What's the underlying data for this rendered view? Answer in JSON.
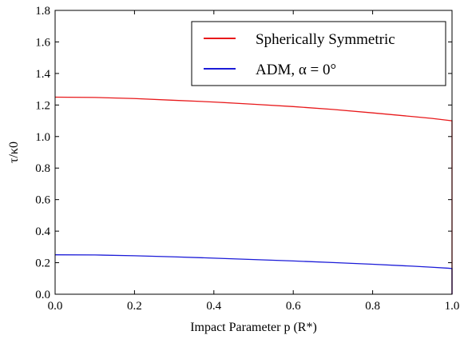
{
  "chart_data": {
    "type": "line",
    "title": "",
    "xlabel": "Impact Parameter p (R*)",
    "ylabel": "τ/κ0",
    "xlim": [
      0.0,
      1.0
    ],
    "ylim": [
      0.0,
      1.8
    ],
    "xticks": [
      "0.0",
      "0.2",
      "0.4",
      "0.6",
      "0.8",
      "1.0"
    ],
    "yticks": [
      "0.0",
      "0.2",
      "0.4",
      "0.6",
      "0.8",
      "1.0",
      "1.2",
      "1.4",
      "1.6",
      "1.8"
    ],
    "grid": false,
    "legend_position": "top-right",
    "series": [
      {
        "name": "Spherically Symmetric",
        "color": "#e8191b",
        "x": [
          0.0,
          0.1,
          0.2,
          0.3,
          0.4,
          0.5,
          0.6,
          0.7,
          0.8,
          0.9,
          0.95,
          0.99,
          1.0,
          1.0
        ],
        "y": [
          1.25,
          1.248,
          1.241,
          1.23,
          1.219,
          1.205,
          1.19,
          1.172,
          1.15,
          1.127,
          1.115,
          1.103,
          1.1,
          0.0
        ]
      },
      {
        "name": "ADM, α = 0°",
        "color": "#1b1bd8",
        "x": [
          0.0,
          0.1,
          0.2,
          0.3,
          0.4,
          0.5,
          0.6,
          0.7,
          0.8,
          0.9,
          0.95,
          0.99,
          1.0,
          1.0
        ],
        "y": [
          0.25,
          0.249,
          0.244,
          0.237,
          0.229,
          0.22,
          0.211,
          0.201,
          0.19,
          0.178,
          0.171,
          0.165,
          0.163,
          0.0
        ]
      }
    ]
  }
}
